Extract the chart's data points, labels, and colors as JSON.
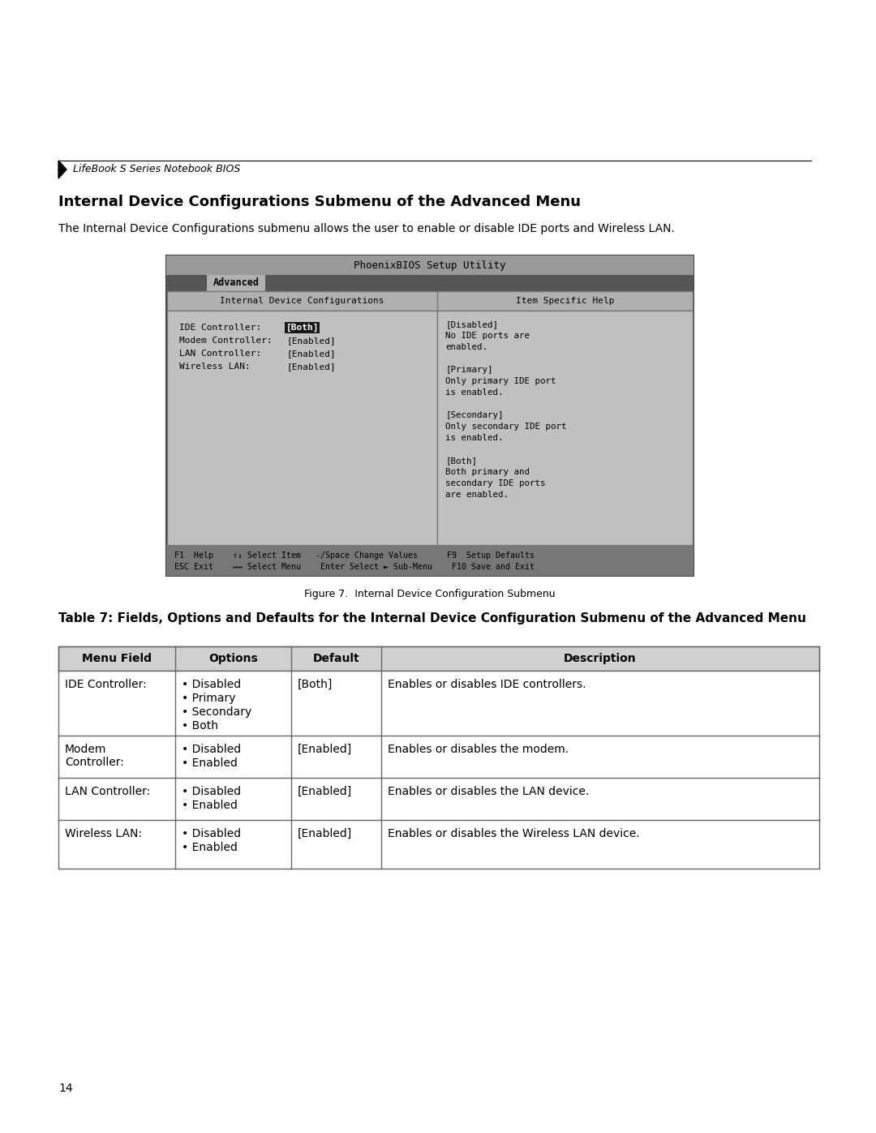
{
  "page_bg": "#ffffff",
  "page_num": "14",
  "header_text": "LifeBook S Series Notebook BIOS",
  "section_title": "Internal Device Configurations Submenu of the Advanced Menu",
  "section_body": "The Internal Device Configurations submenu allows the user to enable or disable IDE ports and Wireless LAN.",
  "figure_caption": "Figure 7.  Internal Device Configuration Submenu",
  "table_title": "Table 7: Fields, Options and Defaults for the Internal Device Configuration Submenu of the Advanced Menu",
  "bios_screen": {
    "title_text": "PhoenixBIOS Setup Utility",
    "tab_text": "Advanced",
    "col1_header": "Internal Device Configurations",
    "col2_header": "Item Specific Help",
    "menu_items": [
      {
        "label": "IDE Controller:   ",
        "value": "[Both]",
        "highlighted": true
      },
      {
        "label": "Modem Controller: ",
        "value": "[Enabled]",
        "highlighted": false
      },
      {
        "label": "LAN Controller:   ",
        "value": "[Enabled]",
        "highlighted": false
      },
      {
        "label": "Wireless LAN:     ",
        "value": "[Enabled]",
        "highlighted": false
      }
    ],
    "help_lines": [
      "[Disabled]",
      "No IDE ports are",
      "enabled.",
      "",
      "[Primary]",
      "Only primary IDE port",
      "is enabled.",
      "",
      "[Secondary]",
      "Only secondary IDE port",
      "is enabled.",
      "",
      "[Both]",
      "Both primary and",
      "secondary IDE ports",
      "are enabled."
    ],
    "footer_line1": "F1  Help    ↑↓ Select Item   -/Space Change Values      F9  Setup Defaults",
    "footer_line2": "ESC Exit    ↔↔ Select Menu    Enter Select ► Sub-Menu    F10 Save and Exit"
  },
  "table_headers": [
    "Menu Field",
    "Options",
    "Default",
    "Description"
  ],
  "table_rows": [
    {
      "field": "IDE Controller:",
      "options": [
        "• Disabled",
        "• Primary",
        "• Secondary",
        "• Both"
      ],
      "default": "[Both]",
      "description": "Enables or disables IDE controllers."
    },
    {
      "field": "Modem\nController:",
      "options": [
        "• Disabled",
        "• Enabled"
      ],
      "default": "[Enabled]",
      "description": "Enables or disables the modem."
    },
    {
      "field": "LAN Controller:",
      "options": [
        "• Disabled",
        "• Enabled"
      ],
      "default": "[Enabled]",
      "description": "Enables or disables the LAN device."
    },
    {
      "field": "Wireless LAN:",
      "options": [
        "• Disabled",
        "• Enabled"
      ],
      "default": "[Enabled]",
      "description": "Enables or disables the Wireless LAN device."
    }
  ]
}
